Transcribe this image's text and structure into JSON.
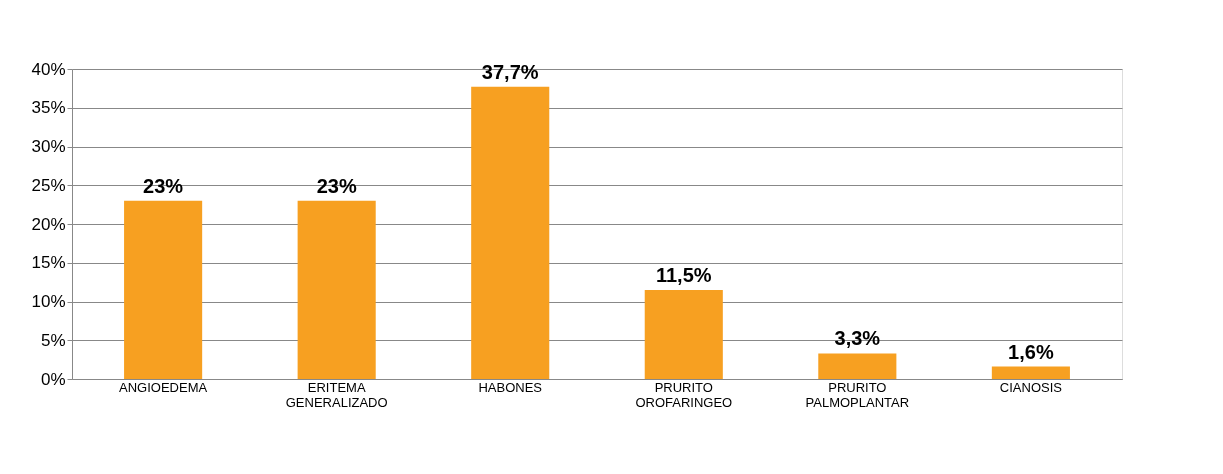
{
  "chart_data": {
    "type": "bar",
    "categories": [
      "ANGIOEDEMA",
      "ERITEMA GENERALIZADO",
      "HABONES",
      "PRURITO OROFARINGEO",
      "PRURITO PALMOPLANTAR",
      "CIANOSIS"
    ],
    "values": [
      23,
      23,
      37.7,
      11.5,
      3.3,
      1.6
    ],
    "value_labels": [
      "23%",
      "23%",
      "37,7%",
      "11,5%",
      "3,3%",
      "1,6%"
    ],
    "color": "#f7a021",
    "ylim": [
      0,
      40
    ],
    "yticks": [
      {
        "value": 0,
        "label": "0%"
      },
      {
        "value": 5,
        "label": "5%"
      },
      {
        "value": 10,
        "label": "10%"
      },
      {
        "value": 15,
        "label": "15%"
      },
      {
        "value": 20,
        "label": "20%"
      },
      {
        "value": 25,
        "label": "25%"
      },
      {
        "value": 30,
        "label": "30%"
      },
      {
        "value": 35,
        "label": "35%"
      },
      {
        "value": 40,
        "label": "40%"
      }
    ],
    "grid": "y"
  }
}
